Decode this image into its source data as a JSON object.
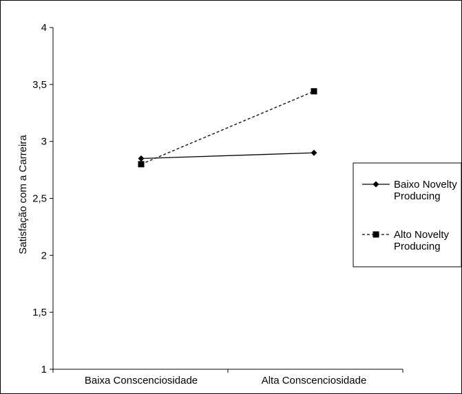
{
  "chart_data": {
    "type": "line",
    "title": "",
    "xlabel": "",
    "ylabel": "Satisfação com a Carreira",
    "categories": [
      "Baixa Conscenciosidade",
      "Alta Conscenciosidade"
    ],
    "ylim": [
      1,
      4
    ],
    "yticks": [
      "1",
      "1,5",
      "2",
      "2,5",
      "3",
      "3,5",
      "4"
    ],
    "ytick_values": [
      1,
      1.5,
      2,
      2.5,
      3,
      3.5,
      4
    ],
    "grid": false,
    "legend_position": "right",
    "series": [
      {
        "name_lines": [
          "Baixo Novelty",
          "Producing"
        ],
        "values": [
          2.85,
          2.9
        ],
        "style": "solid",
        "marker": "diamond",
        "color": "#000000"
      },
      {
        "name_lines": [
          "Alto Novelty",
          "Producing"
        ],
        "values": [
          2.8,
          3.44
        ],
        "style": "dashed",
        "marker": "square",
        "color": "#000000"
      }
    ]
  }
}
